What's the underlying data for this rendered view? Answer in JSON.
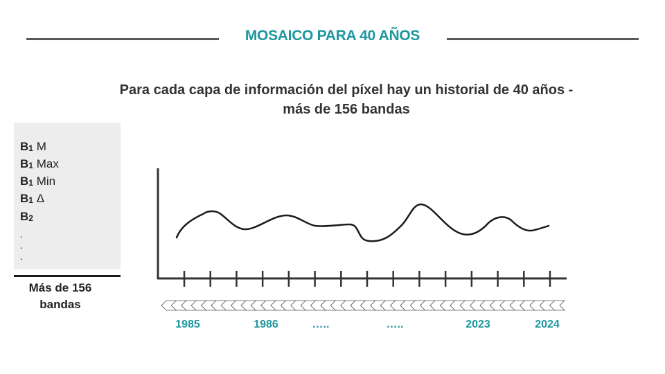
{
  "header": {
    "title": "MOSAICO PARA 40 AÑOS",
    "subtitle_line1": "Para cada capa de información del píxel hay un historial de 40  años -",
    "subtitle_line2": "más de 156 bandas"
  },
  "band_panel": {
    "items": [
      {
        "letter": "B",
        "index": "1",
        "suffix": "M"
      },
      {
        "letter": "B",
        "index": "1",
        "suffix": "Max"
      },
      {
        "letter": "B",
        "index": "1",
        "suffix": "Min"
      },
      {
        "letter": "B",
        "index": "1",
        "suffix": "Δ"
      },
      {
        "letter": "B",
        "index": "2",
        "suffix": ""
      }
    ],
    "ellipsis": [
      ".",
      ".",
      "."
    ],
    "caption_line1": "Más de 156",
    "caption_line2": "bandas"
  },
  "timeline": {
    "labels": [
      "1985",
      "1986",
      "…..",
      "…..",
      "2023",
      "2024"
    ],
    "tick_count": 15,
    "chevron_count": 40
  },
  "colors": {
    "accent": "#1e97a0",
    "text": "#333333",
    "rule": "#595959",
    "panel": "#ededed"
  }
}
